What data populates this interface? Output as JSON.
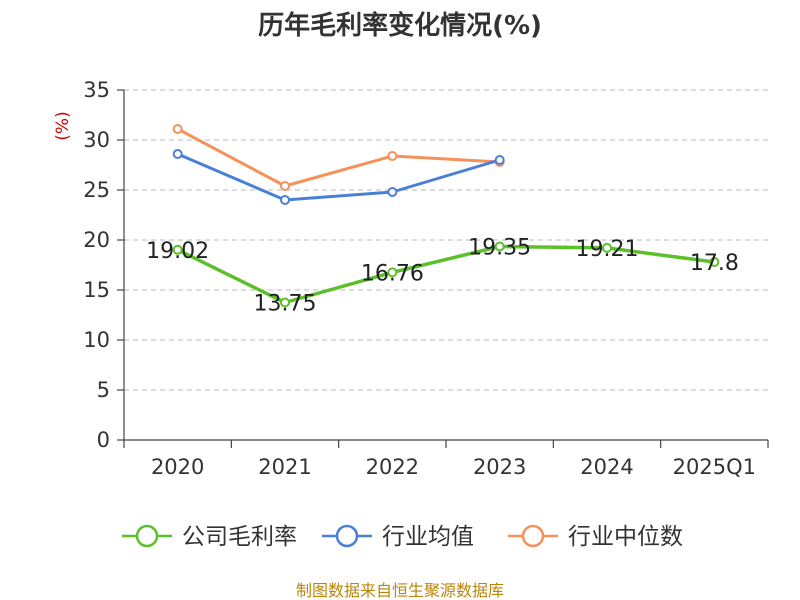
{
  "chart_data": {
    "type": "line",
    "title": "历年毛利率变化情况(%)",
    "ylabel": "(%)",
    "xlabel": "",
    "categories": [
      "2020",
      "2021",
      "2022",
      "2023",
      "2024",
      "2025Q1"
    ],
    "ylim": [
      0,
      35
    ],
    "yticks": [
      0,
      5,
      10,
      15,
      20,
      25,
      30,
      35
    ],
    "grid": true,
    "legend_position": "bottom",
    "series": [
      {
        "name": "公司毛利率",
        "color": "#5cc02a",
        "values": [
          19.02,
          13.75,
          16.76,
          19.35,
          19.21,
          17.8
        ],
        "labels": [
          "19.02",
          "13.75",
          "16.76",
          "19.35",
          "19.21",
          "17.8"
        ]
      },
      {
        "name": "行业均值",
        "color": "#4a7fd8",
        "values": [
          28.6,
          24.0,
          24.8,
          28.0,
          null,
          null
        ]
      },
      {
        "name": "行业中位数",
        "color": "#f5915a",
        "values": [
          31.1,
          25.4,
          28.4,
          27.8,
          null,
          null
        ]
      }
    ],
    "source": "制图数据来自恒生聚源数据库",
    "source_color": "#b8860b",
    "unit_color": "#cc0000"
  }
}
